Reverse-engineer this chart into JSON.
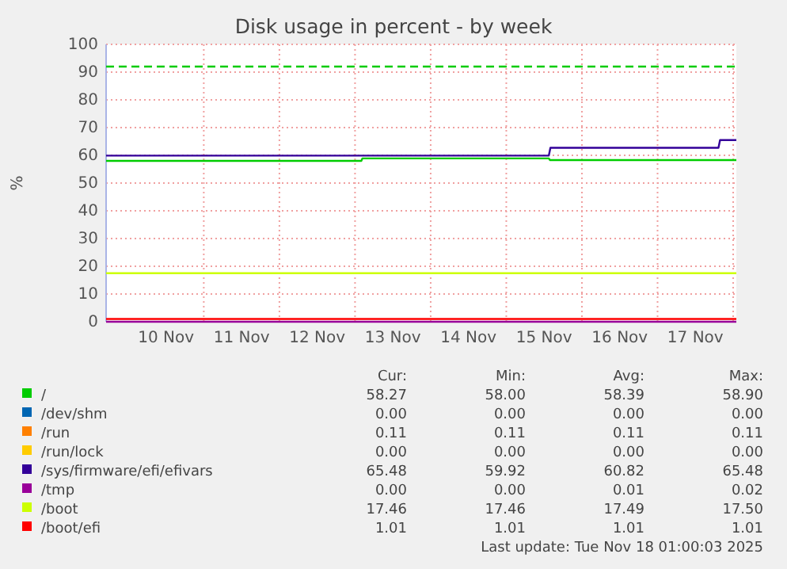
{
  "chart_data": {
    "type": "line",
    "title": "Disk usage in percent - by week",
    "ylabel": "%",
    "xlim": [
      "2025-11-09T17:00",
      "2025-11-18T01:00"
    ],
    "xticks": [
      {
        "value": "2025-11-10T12:00",
        "label": "10 Nov"
      },
      {
        "value": "2025-11-11T12:00",
        "label": "11 Nov"
      },
      {
        "value": "2025-11-12T12:00",
        "label": "12 Nov"
      },
      {
        "value": "2025-11-13T12:00",
        "label": "13 Nov"
      },
      {
        "value": "2025-11-14T12:00",
        "label": "14 Nov"
      },
      {
        "value": "2025-11-15T12:00",
        "label": "15 Nov"
      },
      {
        "value": "2025-11-16T12:00",
        "label": "16 Nov"
      },
      {
        "value": "2025-11-17T12:00",
        "label": "17 Nov"
      }
    ],
    "ylim": [
      0,
      100
    ],
    "yticks": [
      0,
      10,
      20,
      30,
      40,
      50,
      60,
      70,
      80,
      90,
      100
    ],
    "grid": true,
    "legend": "bottom",
    "line_style": "solid",
    "marker": "none",
    "series": [
      {
        "name": "/",
        "color": "#00cc00",
        "x": [
          "2025-11-09T17:00",
          "2025-11-13T02:00",
          "2025-11-13T02:20",
          "2025-11-15T13:30",
          "2025-11-15T13:50",
          "2025-11-18T01:00"
        ],
        "values": [
          58.0,
          58.0,
          58.9,
          58.9,
          58.3,
          58.3
        ]
      },
      {
        "name": "/dev/shm",
        "color": "#0066b3"
      },
      {
        "name": "/run",
        "color": "#ff8000"
      },
      {
        "name": "/run/lock",
        "color": "#ffcc00"
      },
      {
        "name": "/sys/firmware/efi/efivars",
        "color": "#330099",
        "x": [
          "2025-11-09T17:00",
          "2025-11-15T13:30",
          "2025-11-15T14:00",
          "2025-11-17T19:20",
          "2025-11-17T19:50",
          "2025-11-18T01:00"
        ],
        "values": [
          59.9,
          59.9,
          62.7,
          62.7,
          65.5,
          65.5
        ]
      },
      {
        "name": "/tmp",
        "color": "#990099",
        "x": [
          "2025-11-09T17:00",
          "2025-11-18T01:00"
        ],
        "values": [
          0,
          0
        ]
      },
      {
        "name": "/boot",
        "color": "#ccff00",
        "x": [
          "2025-11-09T17:00",
          "2025-11-18T01:00"
        ],
        "values": [
          17.5,
          17.5
        ]
      },
      {
        "name": "/boot/efi",
        "color": "#ff0000",
        "x": [
          "2025-11-09T17:00",
          "2025-11-18T01:00"
        ],
        "values": [
          1,
          1
        ]
      }
    ],
    "ref_lines": [
      {
        "axis": "y",
        "value": 92,
        "color": "#00cc00",
        "line_style": "dashed"
      }
    ],
    "annotations": [
      "Cur:",
      "Min:",
      "Avg:",
      "Max:",
      "58.27",
      "58.00",
      "58.39",
      "58.90",
      "0.00",
      "0.00",
      "0.00",
      "0.00",
      "0.11",
      "0.11",
      "0.11",
      "0.11",
      "0.00",
      "0.00",
      "0.00",
      "0.00",
      "65.48",
      "59.92",
      "60.82",
      "65.48",
      "0.00",
      "0.00",
      "0.01",
      "0.02",
      "17.46",
      "17.46",
      "17.49",
      "17.50",
      "1.01",
      "1.01",
      "1.01",
      "1.01",
      "Last update: Tue Nov 18 01:00:03 2025"
    ]
  }
}
